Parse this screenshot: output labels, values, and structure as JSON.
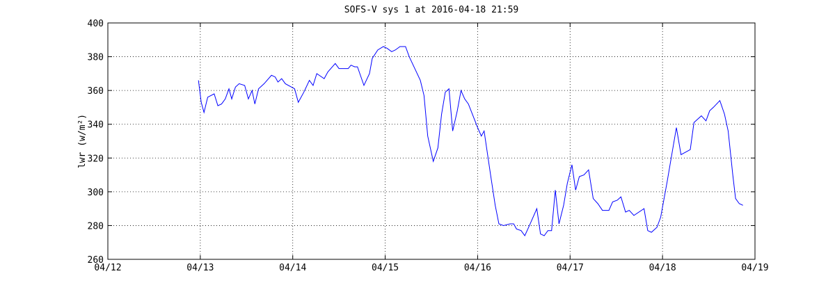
{
  "chart_data": {
    "type": "line",
    "title": "SOFS-V sys 1 at 2016-04-18 21:59",
    "ylabel": "lwr (w/m²)",
    "color": "#0000ff",
    "grid": true,
    "xlim": [
      0,
      7
    ],
    "xticks": [
      {
        "value": 0,
        "label": "04/12"
      },
      {
        "value": 1,
        "label": "04/13"
      },
      {
        "value": 2,
        "label": "04/14"
      },
      {
        "value": 3,
        "label": "04/15"
      },
      {
        "value": 4,
        "label": "04/16"
      },
      {
        "value": 5,
        "label": "04/17"
      },
      {
        "value": 6,
        "label": "04/18"
      },
      {
        "value": 7,
        "label": "04/19"
      }
    ],
    "ylim": [
      260,
      400
    ],
    "yticks": [
      260,
      280,
      300,
      320,
      340,
      360,
      380,
      400
    ],
    "x": [
      0.98,
      1.01,
      1.04,
      1.08,
      1.15,
      1.19,
      1.23,
      1.27,
      1.31,
      1.34,
      1.38,
      1.42,
      1.48,
      1.52,
      1.56,
      1.59,
      1.63,
      1.69,
      1.77,
      1.81,
      1.84,
      1.88,
      1.92,
      2.02,
      2.06,
      2.12,
      2.18,
      2.22,
      2.26,
      2.34,
      2.38,
      2.46,
      2.5,
      2.6,
      2.63,
      2.67,
      2.7,
      2.77,
      2.83,
      2.86,
      2.92,
      2.98,
      3.02,
      3.07,
      3.11,
      3.16,
      3.22,
      3.26,
      3.32,
      3.38,
      3.42,
      3.46,
      3.52,
      3.57,
      3.61,
      3.65,
      3.69,
      3.73,
      3.78,
      3.82,
      3.86,
      3.9,
      3.95,
      4.0,
      4.04,
      4.07,
      4.14,
      4.19,
      4.23,
      4.28,
      4.35,
      4.39,
      4.42,
      4.47,
      4.51,
      4.56,
      4.64,
      4.68,
      4.72,
      4.76,
      4.8,
      4.84,
      4.88,
      4.93,
      4.97,
      5.02,
      5.06,
      5.1,
      5.15,
      5.2,
      5.25,
      5.3,
      5.35,
      5.42,
      5.46,
      5.51,
      5.55,
      5.6,
      5.64,
      5.69,
      5.8,
      5.84,
      5.88,
      5.94,
      5.98,
      6.05,
      6.1,
      6.15,
      6.2,
      6.3,
      6.34,
      6.42,
      6.47,
      6.51,
      6.55,
      6.62,
      6.67,
      6.71,
      6.76,
      6.79,
      6.83,
      6.87
    ],
    "values": [
      366,
      353,
      347,
      356,
      358,
      351,
      352,
      355,
      361,
      355,
      362,
      364,
      363,
      355,
      360,
      352,
      361,
      364,
      369,
      368,
      365,
      367,
      364,
      361,
      353,
      359,
      366,
      363,
      370,
      367,
      371,
      376,
      373,
      373,
      375,
      374,
      374,
      363,
      370,
      379,
      384,
      386,
      385,
      383,
      384,
      386,
      386,
      380,
      373,
      366,
      357,
      333,
      318,
      326,
      346,
      359,
      361,
      336,
      348,
      360,
      355,
      352,
      345,
      338,
      333,
      336,
      310,
      292,
      281,
      280,
      281,
      281,
      278,
      277,
      274,
      280,
      290,
      275,
      274,
      277,
      277,
      301,
      281,
      292,
      305,
      316,
      301,
      309,
      310,
      313,
      296,
      293,
      289,
      289,
      294,
      295,
      297,
      288,
      289,
      286,
      290,
      277,
      276,
      279,
      285,
      306,
      322,
      338,
      322,
      325,
      341,
      345,
      342,
      348,
      350,
      354,
      346,
      336,
      310,
      296,
      293,
      292
    ]
  }
}
